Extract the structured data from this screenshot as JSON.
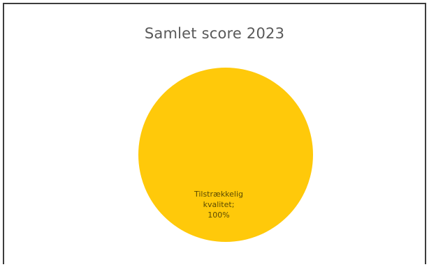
{
  "chart_data": {
    "type": "pie",
    "title": "Samlet score 2023",
    "slices": [
      {
        "label": "Tilstrækkelig kvalitet",
        "value": 100,
        "label_lines": [
          "Tilstrækkelig",
          "kvalitet;",
          "100%"
        ],
        "color": "#FFC90A"
      }
    ]
  }
}
